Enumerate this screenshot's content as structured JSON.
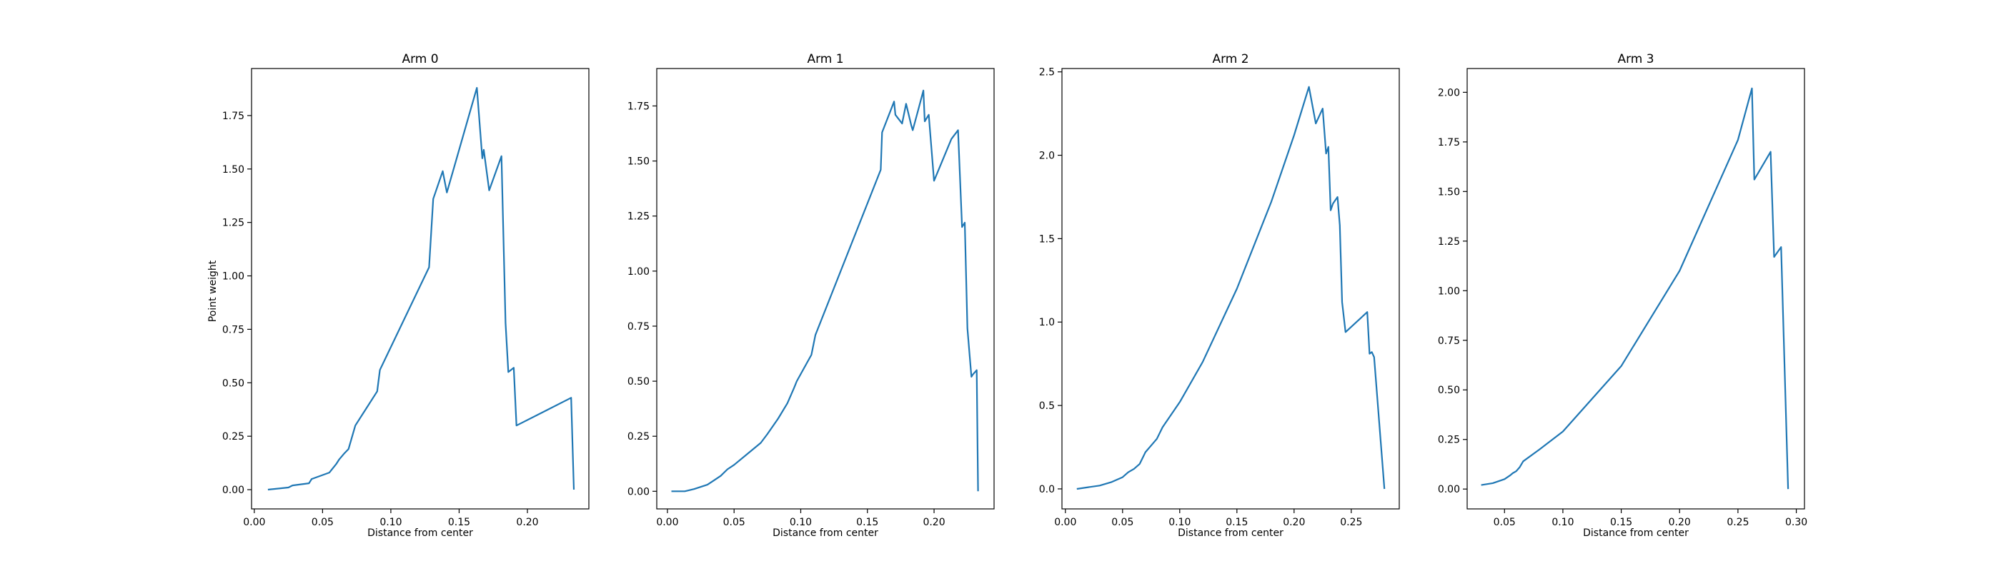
{
  "chart_data": [
    {
      "type": "line",
      "title": "Arm 0",
      "xlabel": "Distance from center",
      "ylabel": "Point weight",
      "xlim": [
        -0.002,
        0.245
      ],
      "ylim": [
        -0.09,
        1.97
      ],
      "xticks": [
        0.0,
        0.05,
        0.1,
        0.15,
        0.2
      ],
      "xtick_labels": [
        "0.00",
        "0.05",
        "0.10",
        "0.15",
        "0.20"
      ],
      "yticks": [
        0.0,
        0.25,
        0.5,
        0.75,
        1.0,
        1.25,
        1.5,
        1.75
      ],
      "ytick_labels": [
        "0.00",
        "0.25",
        "0.50",
        "0.75",
        "1.00",
        "1.25",
        "1.50",
        "1.75"
      ],
      "series": [
        {
          "color": "#1f77b4",
          "x": [
            0.01,
            0.025,
            0.028,
            0.04,
            0.042,
            0.055,
            0.06,
            0.062,
            0.066,
            0.069,
            0.074,
            0.09,
            0.092,
            0.128,
            0.131,
            0.138,
            0.141,
            0.163,
            0.167,
            0.168,
            0.172,
            0.181,
            0.184,
            0.186,
            0.19,
            0.192,
            0.232,
            0.234
          ],
          "y": [
            0.0,
            0.01,
            0.02,
            0.03,
            0.05,
            0.08,
            0.12,
            0.14,
            0.17,
            0.19,
            0.3,
            0.46,
            0.56,
            1.04,
            1.36,
            1.49,
            1.39,
            1.88,
            1.55,
            1.59,
            1.4,
            1.56,
            0.78,
            0.55,
            0.57,
            0.3,
            0.43,
            0.0
          ]
        }
      ]
    },
    {
      "type": "line",
      "title": "Arm 1",
      "xlabel": "Distance from center",
      "ylabel": "",
      "xlim": [
        -0.008,
        0.245
      ],
      "ylim": [
        -0.08,
        1.92
      ],
      "xticks": [
        0.0,
        0.05,
        0.1,
        0.15,
        0.2
      ],
      "xtick_labels": [
        "0.00",
        "0.05",
        "0.10",
        "0.15",
        "0.20"
      ],
      "yticks": [
        0.0,
        0.25,
        0.5,
        0.75,
        1.0,
        1.25,
        1.5,
        1.75
      ],
      "ytick_labels": [
        "0.00",
        "0.25",
        "0.50",
        "0.75",
        "1.00",
        "1.25",
        "1.50",
        "1.75"
      ],
      "series": [
        {
          "color": "#1f77b4",
          "x": [
            0.003,
            0.013,
            0.02,
            0.03,
            0.035,
            0.04,
            0.045,
            0.05,
            0.06,
            0.07,
            0.075,
            0.083,
            0.09,
            0.095,
            0.097,
            0.108,
            0.111,
            0.16,
            0.161,
            0.17,
            0.171,
            0.176,
            0.179,
            0.183,
            0.184,
            0.188,
            0.192,
            0.193,
            0.196,
            0.2,
            0.213,
            0.218,
            0.221,
            0.223,
            0.225,
            0.228,
            0.229,
            0.232,
            0.233
          ],
          "y": [
            0.0,
            0.0,
            0.01,
            0.03,
            0.05,
            0.07,
            0.1,
            0.12,
            0.17,
            0.22,
            0.26,
            0.33,
            0.4,
            0.47,
            0.5,
            0.62,
            0.71,
            1.46,
            1.63,
            1.77,
            1.71,
            1.67,
            1.76,
            1.66,
            1.64,
            1.73,
            1.82,
            1.68,
            1.71,
            1.41,
            1.6,
            1.64,
            1.2,
            1.22,
            0.74,
            0.52,
            0.53,
            0.55,
            0.0
          ]
        }
      ]
    },
    {
      "type": "line",
      "title": "Arm 2",
      "xlabel": "Distance from center",
      "ylabel": "",
      "xlim": [
        -0.003,
        0.292
      ],
      "ylim": [
        -0.12,
        2.52
      ],
      "xticks": [
        0.0,
        0.05,
        0.1,
        0.15,
        0.2,
        0.25
      ],
      "xtick_labels": [
        "0.00",
        "0.05",
        "0.10",
        "0.15",
        "0.20",
        "0.25"
      ],
      "yticks": [
        0.0,
        0.5,
        1.0,
        1.5,
        2.0,
        2.5
      ],
      "ytick_labels": [
        "0.0",
        "0.5",
        "1.0",
        "1.5",
        "2.0",
        "2.5"
      ],
      "series": [
        {
          "color": "#1f77b4",
          "x": [
            0.01,
            0.02,
            0.03,
            0.04,
            0.05,
            0.055,
            0.06,
            0.065,
            0.07,
            0.075,
            0.08,
            0.085,
            0.1,
            0.12,
            0.15,
            0.18,
            0.2,
            0.213,
            0.219,
            0.225,
            0.228,
            0.23,
            0.232,
            0.234,
            0.238,
            0.24,
            0.242,
            0.245,
            0.264,
            0.266,
            0.268,
            0.27,
            0.279
          ],
          "y": [
            0.0,
            0.01,
            0.02,
            0.04,
            0.07,
            0.1,
            0.12,
            0.15,
            0.22,
            0.26,
            0.3,
            0.37,
            0.52,
            0.76,
            1.2,
            1.72,
            2.12,
            2.41,
            2.19,
            2.28,
            2.01,
            2.05,
            1.67,
            1.71,
            1.75,
            1.58,
            1.12,
            0.94,
            1.06,
            0.81,
            0.82,
            0.79,
            0.0
          ]
        }
      ]
    },
    {
      "type": "line",
      "title": "Arm 3",
      "xlabel": "Distance from center",
      "ylabel": "",
      "xlim": [
        0.018,
        0.307
      ],
      "ylim": [
        -0.1,
        2.12
      ],
      "xticks": [
        0.05,
        0.1,
        0.15,
        0.2,
        0.25,
        0.3
      ],
      "xtick_labels": [
        "0.05",
        "0.10",
        "0.15",
        "0.20",
        "0.25",
        "0.30"
      ],
      "yticks": [
        0.0,
        0.25,
        0.5,
        0.75,
        1.0,
        1.25,
        1.5,
        1.75,
        2.0
      ],
      "ytick_labels": [
        "0.00",
        "0.25",
        "0.50",
        "0.75",
        "1.00",
        "1.25",
        "1.50",
        "1.75",
        "2.00"
      ],
      "series": [
        {
          "color": "#1f77b4",
          "x": [
            0.03,
            0.04,
            0.05,
            0.055,
            0.057,
            0.06,
            0.063,
            0.066,
            0.08,
            0.1,
            0.15,
            0.2,
            0.25,
            0.262,
            0.264,
            0.278,
            0.281,
            0.287,
            0.293
          ],
          "y": [
            0.02,
            0.03,
            0.05,
            0.07,
            0.08,
            0.09,
            0.11,
            0.14,
            0.2,
            0.29,
            0.62,
            1.1,
            1.76,
            2.02,
            1.56,
            1.7,
            1.17,
            1.22,
            0.0
          ]
        }
      ]
    }
  ]
}
